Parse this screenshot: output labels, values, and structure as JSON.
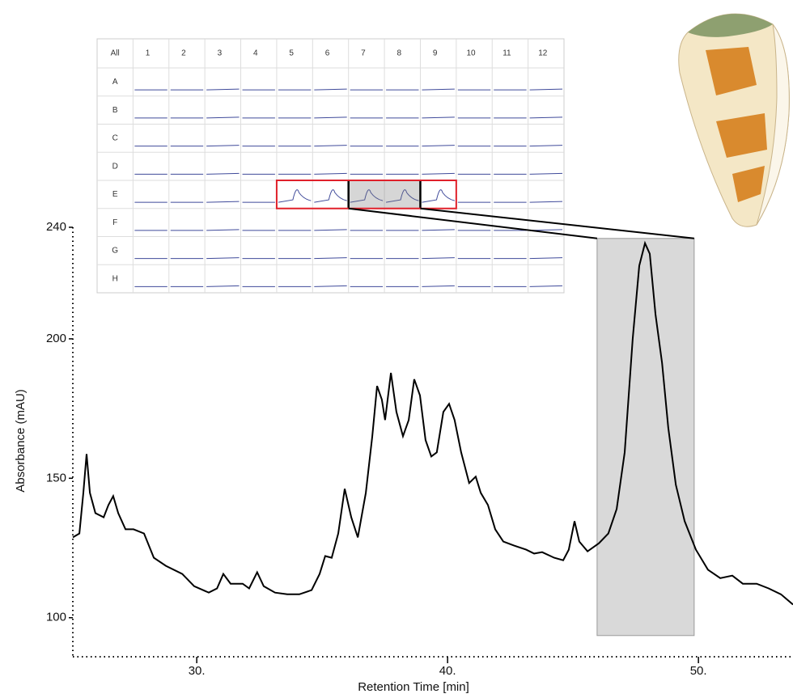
{
  "chart_data": {
    "type": "line",
    "x_label": "Retention Time [min]",
    "y_label": "Absorbance (mAU)",
    "xlim": [
      25.06,
      53.77
    ],
    "ylim": [
      86,
      240
    ],
    "xticks": [
      {
        "value": 30,
        "label": "30."
      },
      {
        "value": 40,
        "label": "40."
      },
      {
        "value": 50,
        "label": "50."
      }
    ],
    "yticks": [
      100,
      150,
      200,
      240
    ],
    "color": "#000000",
    "highlight": {
      "xlim": [
        45.96,
        49.83
      ],
      "ylim": [
        93.6,
        236
      ],
      "color": "#d9d9d9"
    },
    "x": [
      25.06,
      25.32,
      25.48,
      25.61,
      25.74,
      25.96,
      26.29,
      26.48,
      26.67,
      26.87,
      27.16,
      27.48,
      27.9,
      28.29,
      28.77,
      29.42,
      29.9,
      30.48,
      30.81,
      31.06,
      31.35,
      31.83,
      32.09,
      32.41,
      32.67,
      33.12,
      33.61,
      34.09,
      34.58,
      34.9,
      35.12,
      35.38,
      35.64,
      35.9,
      36.16,
      36.42,
      36.74,
      37,
      37.19,
      37.38,
      37.51,
      37.74,
      37.96,
      38.22,
      38.45,
      38.67,
      38.9,
      39.12,
      39.35,
      39.57,
      39.83,
      40.06,
      40.28,
      40.54,
      40.86,
      41.12,
      41.32,
      41.61,
      41.9,
      42.22,
      42.64,
      43.13,
      43.45,
      43.77,
      44.25,
      44.61,
      44.83,
      45.06,
      45.25,
      45.58,
      46.03,
      46.41,
      46.74,
      47.06,
      47.38,
      47.64,
      47.87,
      48.06,
      48.29,
      48.55,
      48.8,
      49.1,
      49.45,
      49.9,
      50.38,
      50.87,
      51.35,
      51.77,
      52.32,
      52.8,
      53.29,
      53.77
    ],
    "values": [
      128.8,
      130.2,
      144.8,
      158.7,
      144.8,
      137.5,
      136,
      140.4,
      143.6,
      137.5,
      131.7,
      131.7,
      130.2,
      121.5,
      118.6,
      115.7,
      111.3,
      109,
      110.5,
      115.7,
      112.2,
      112.2,
      110.5,
      116.3,
      111.3,
      109,
      108.4,
      108.4,
      109.9,
      115.7,
      122.1,
      121.5,
      130.2,
      146.2,
      136,
      128.8,
      144.8,
      165.1,
      183.1,
      178.2,
      170.9,
      187.8,
      173.8,
      165.1,
      170.9,
      185.5,
      179.7,
      163.7,
      157.8,
      159.3,
      173.8,
      176.7,
      170.9,
      159.3,
      148.3,
      150.6,
      144.8,
      140.4,
      131.7,
      127.3,
      125.9,
      124.4,
      123,
      123.5,
      121.5,
      120.6,
      124.4,
      134.6,
      127.3,
      123.8,
      126.7,
      130.2,
      139,
      159.3,
      200,
      226.2,
      234.3,
      230.5,
      208.7,
      191.3,
      168,
      147.7,
      134.6,
      124.4,
      117.2,
      114.2,
      115.1,
      112.2,
      112.2,
      110.5,
      108.4,
      104.7
    ]
  },
  "inset": {
    "columns": [
      "All",
      "1",
      "2",
      "3",
      "4",
      "5",
      "6",
      "7",
      "8",
      "9",
      "10",
      "11",
      "12"
    ],
    "rows": [
      "A",
      "B",
      "C",
      "D",
      "E",
      "F",
      "G",
      "H"
    ]
  }
}
